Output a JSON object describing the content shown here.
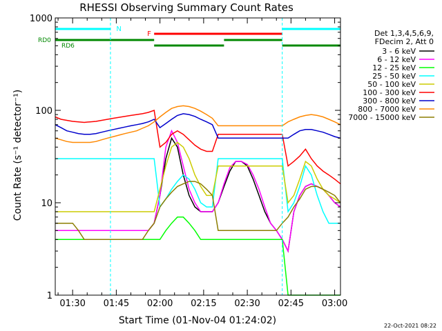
{
  "chart_data": {
    "type": "line",
    "title": "RHESSI Observing Summary Count Rates",
    "xlabel": "Start Time (01-Nov-04 01:24:02)",
    "ylabel": "Count Rate (s⁻¹ detector⁻¹)",
    "y_scale": "log",
    "ylim": [
      1,
      1000
    ],
    "y_tick_labels": [
      "1",
      "10",
      "100",
      "1000"
    ],
    "xlim": [
      "01:24:02",
      "03:02:00"
    ],
    "x_tick_labels": [
      "01:30",
      "01:45",
      "02:00",
      "02:15",
      "02:30",
      "02:45",
      "03:00"
    ],
    "legend_header": [
      "Det 1,3,4,5,6,9,",
      "FDecim 2, Att 0"
    ],
    "legend_placement": "right",
    "x": [
      "01:24",
      "01:26",
      "01:28",
      "01:30",
      "01:32",
      "01:34",
      "01:36",
      "01:38",
      "01:40",
      "01:42",
      "01:44",
      "01:46",
      "01:48",
      "01:50",
      "01:52",
      "01:54",
      "01:56",
      "01:58",
      "02:00",
      "02:02",
      "02:04",
      "02:06",
      "02:08",
      "02:10",
      "02:12",
      "02:14",
      "02:16",
      "02:18",
      "02:20",
      "02:22",
      "02:24",
      "02:26",
      "02:28",
      "02:30",
      "02:32",
      "02:34",
      "02:36",
      "02:38",
      "02:40",
      "02:42",
      "02:44",
      "02:46",
      "02:48",
      "02:50",
      "02:52",
      "02:54",
      "02:56",
      "02:58",
      "03:00",
      "03:02"
    ],
    "series": [
      {
        "name": "3 - 6 keV",
        "color": "#000000",
        "values": [
          5,
          5,
          5,
          5,
          5,
          5,
          5,
          5,
          5,
          5,
          5,
          5,
          5,
          5,
          5,
          5,
          5,
          6,
          12,
          30,
          50,
          40,
          20,
          12,
          9,
          8,
          8,
          8,
          10,
          15,
          22,
          28,
          28,
          25,
          18,
          12,
          8,
          6,
          5,
          4,
          3,
          8,
          12,
          15,
          16,
          15,
          14,
          12,
          10,
          9
        ]
      },
      {
        "name": "6 - 12 keV",
        "color": "#ff00ff",
        "values": [
          5,
          5,
          5,
          5,
          5,
          5,
          5,
          5,
          5,
          5,
          5,
          5,
          5,
          5,
          5,
          5,
          5,
          6,
          12,
          40,
          60,
          45,
          25,
          14,
          10,
          8,
          8,
          8,
          10,
          16,
          24,
          28,
          28,
          26,
          20,
          14,
          9,
          6,
          5,
          4,
          3,
          8,
          12,
          15,
          16,
          15,
          14,
          12,
          10,
          9
        ]
      },
      {
        "name": "12 - 25 keV",
        "color": "#00ff00",
        "values": [
          4,
          4,
          4,
          4,
          4,
          4,
          4,
          4,
          4,
          4,
          4,
          4,
          4,
          4,
          4,
          4,
          4,
          4,
          4,
          5,
          6,
          7,
          7,
          6,
          5,
          4,
          4,
          4,
          4,
          4,
          4,
          4,
          4,
          4,
          4,
          4,
          4,
          4,
          4,
          4,
          1,
          1,
          1,
          1,
          1,
          1,
          1,
          1,
          1,
          1
        ]
      },
      {
        "name": "25 - 50 keV",
        "color": "#00ffff",
        "values": [
          30,
          30,
          30,
          30,
          30,
          30,
          30,
          30,
          30,
          30,
          30,
          30,
          30,
          30,
          30,
          30,
          30,
          30,
          9,
          11,
          14,
          17,
          20,
          18,
          14,
          10,
          9,
          9,
          30,
          30,
          30,
          30,
          30,
          30,
          30,
          30,
          30,
          30,
          30,
          30,
          8,
          10,
          15,
          25,
          20,
          12,
          8,
          6,
          6,
          6
        ]
      },
      {
        "name": "50 - 100 keV",
        "color": "#cccc00",
        "values": [
          8,
          8,
          8,
          8,
          8,
          8,
          8,
          8,
          8,
          8,
          8,
          8,
          8,
          8,
          8,
          8,
          8,
          8,
          14,
          25,
          40,
          45,
          40,
          30,
          20,
          15,
          12,
          12,
          25,
          25,
          25,
          25,
          25,
          25,
          25,
          25,
          25,
          25,
          25,
          25,
          10,
          12,
          18,
          28,
          25,
          18,
          14,
          12,
          11,
          10
        ]
      },
      {
        "name": "100 - 300 keV",
        "color": "#ff0000",
        "values": [
          85,
          80,
          78,
          76,
          75,
          74,
          75,
          76,
          78,
          80,
          82,
          84,
          86,
          88,
          90,
          92,
          95,
          100,
          40,
          45,
          55,
          60,
          55,
          48,
          42,
          38,
          36,
          36,
          55,
          55,
          55,
          55,
          55,
          55,
          55,
          55,
          55,
          55,
          55,
          55,
          25,
          28,
          32,
          38,
          30,
          25,
          22,
          20,
          18,
          16
        ]
      },
      {
        "name": "300 - 800 keV",
        "color": "#0000cc",
        "values": [
          70,
          65,
          60,
          58,
          56,
          55,
          55,
          56,
          58,
          60,
          62,
          64,
          66,
          68,
          70,
          72,
          75,
          80,
          65,
          72,
          80,
          88,
          92,
          90,
          86,
          80,
          75,
          70,
          50,
          50,
          50,
          50,
          50,
          50,
          50,
          50,
          50,
          50,
          50,
          50,
          50,
          55,
          60,
          62,
          62,
          60,
          58,
          55,
          52,
          50
        ]
      },
      {
        "name": "800 - 7000 keV",
        "color": "#ff8800",
        "values": [
          50,
          48,
          46,
          45,
          45,
          45,
          45,
          46,
          48,
          50,
          52,
          54,
          56,
          58,
          60,
          64,
          68,
          75,
          85,
          95,
          105,
          110,
          112,
          110,
          105,
          98,
          90,
          82,
          68,
          68,
          68,
          68,
          68,
          68,
          68,
          68,
          68,
          68,
          68,
          68,
          75,
          80,
          85,
          88,
          90,
          88,
          85,
          80,
          75,
          70
        ]
      },
      {
        "name": "7000 - 15000 keV",
        "color": "#8b7d00",
        "values": [
          6,
          6,
          6,
          6,
          5,
          4,
          4,
          4,
          4,
          4,
          4,
          4,
          4,
          4,
          4,
          4,
          5,
          6,
          9,
          11,
          13,
          15,
          16,
          17,
          17,
          16,
          14,
          12,
          5,
          5,
          5,
          5,
          5,
          5,
          5,
          5,
          5,
          5,
          5,
          6,
          7,
          9,
          11,
          14,
          15,
          15,
          14,
          13,
          12,
          10
        ]
      }
    ],
    "segment_bars": {
      "labels": [
        "N",
        "F",
        "RD0",
        "RD6"
      ],
      "colors": {
        "N": "#00ffff",
        "F": "#ff0000",
        "RD0": "#008800",
        "RD6": "#008800"
      }
    },
    "footer_timestamp": "22-Oct-2021 08:22"
  }
}
